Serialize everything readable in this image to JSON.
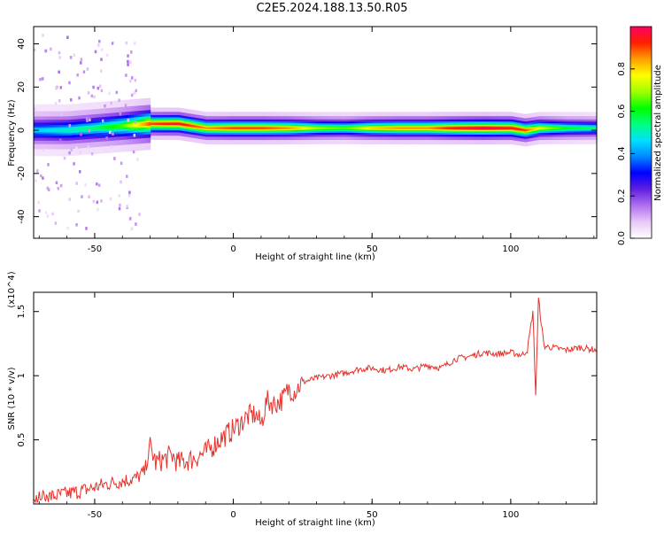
{
  "figure": {
    "title": "C2E5.2024.188.13.50.R05"
  },
  "chart_data": [
    {
      "type": "heatmap",
      "title": "",
      "xlabel": "Height of straight line (km)",
      "ylabel": "Frequency (Hz)",
      "xlim": [
        -72,
        131
      ],
      "ylim": [
        -50,
        48
      ],
      "xticks": [
        -50,
        0,
        50,
        100
      ],
      "yticks": [
        -40,
        -20,
        0,
        20,
        40
      ],
      "colorbar": {
        "label": "Normalized spectral amplitude",
        "range": [
          0.0,
          1.0
        ],
        "ticks": [
          "0.0",
          "0.2",
          "0.4",
          "0.6",
          "0.8"
        ],
        "colormap": [
          "#ffffff",
          "#e8c8f8",
          "#b070f0",
          "#6020e0",
          "#0000ff",
          "#0088ff",
          "#00e0ff",
          "#00ff80",
          "#00ff00",
          "#a0ff00",
          "#ffff00",
          "#ffa000",
          "#ff2000",
          "#ff0060"
        ]
      },
      "ridge": {
        "x": [
          -70,
          -60,
          -50,
          -40,
          -30,
          -20,
          -10,
          0,
          10,
          20,
          30,
          40,
          50,
          60,
          70,
          80,
          90,
          100,
          105,
          110,
          120,
          130
        ],
        "center_hz": [
          0,
          0,
          1,
          2,
          3,
          3,
          1,
          1,
          1,
          1,
          1,
          1,
          1,
          1,
          1,
          1,
          1,
          1,
          0,
          1,
          1,
          1
        ],
        "peak_amplitude": [
          0.45,
          0.5,
          0.55,
          0.65,
          0.9,
          0.95,
          0.85,
          0.9,
          0.9,
          0.85,
          0.7,
          0.65,
          0.8,
          0.85,
          0.85,
          0.95,
          1.0,
          0.95,
          0.9,
          0.75,
          0.6,
          0.55
        ]
      }
    },
    {
      "type": "line",
      "title": "",
      "xlabel": "Height of straight line (km)",
      "ylabel": "SNR (10 * v/v)",
      "y_multiplier": "(x10^4)",
      "xlim": [
        -72,
        131
      ],
      "ylim": [
        0,
        1.65
      ],
      "xticks": [
        -50,
        0,
        50,
        100
      ],
      "yticks": [
        0.5,
        1.0,
        1.5
      ],
      "color": "#e8302a",
      "series": [
        {
          "x": [
            -72,
            -65,
            -60,
            -55,
            -50,
            -45,
            -40,
            -35,
            -32,
            -30,
            -28,
            -25,
            -22,
            -20,
            -15,
            -10,
            -5,
            0,
            5,
            8,
            10,
            12,
            15,
            18,
            20,
            22,
            25,
            30,
            35,
            40,
            45,
            50,
            55,
            60,
            65,
            70,
            75,
            80,
            85,
            90,
            95,
            100,
            104,
            106,
            108,
            109,
            110,
            112,
            115,
            120,
            125,
            131
          ],
          "y": [
            0.05,
            0.06,
            0.08,
            0.1,
            0.13,
            0.16,
            0.18,
            0.2,
            0.25,
            0.45,
            0.32,
            0.35,
            0.38,
            0.32,
            0.35,
            0.4,
            0.5,
            0.58,
            0.68,
            0.7,
            0.62,
            0.8,
            0.78,
            0.82,
            0.9,
            0.88,
            0.95,
            0.98,
            1.0,
            1.02,
            1.05,
            1.06,
            1.04,
            1.07,
            1.05,
            1.08,
            1.06,
            1.13,
            1.15,
            1.18,
            1.17,
            1.18,
            1.16,
            1.2,
            1.5,
            0.85,
            1.6,
            1.23,
            1.22,
            1.2,
            1.22,
            1.2
          ]
        }
      ]
    }
  ]
}
